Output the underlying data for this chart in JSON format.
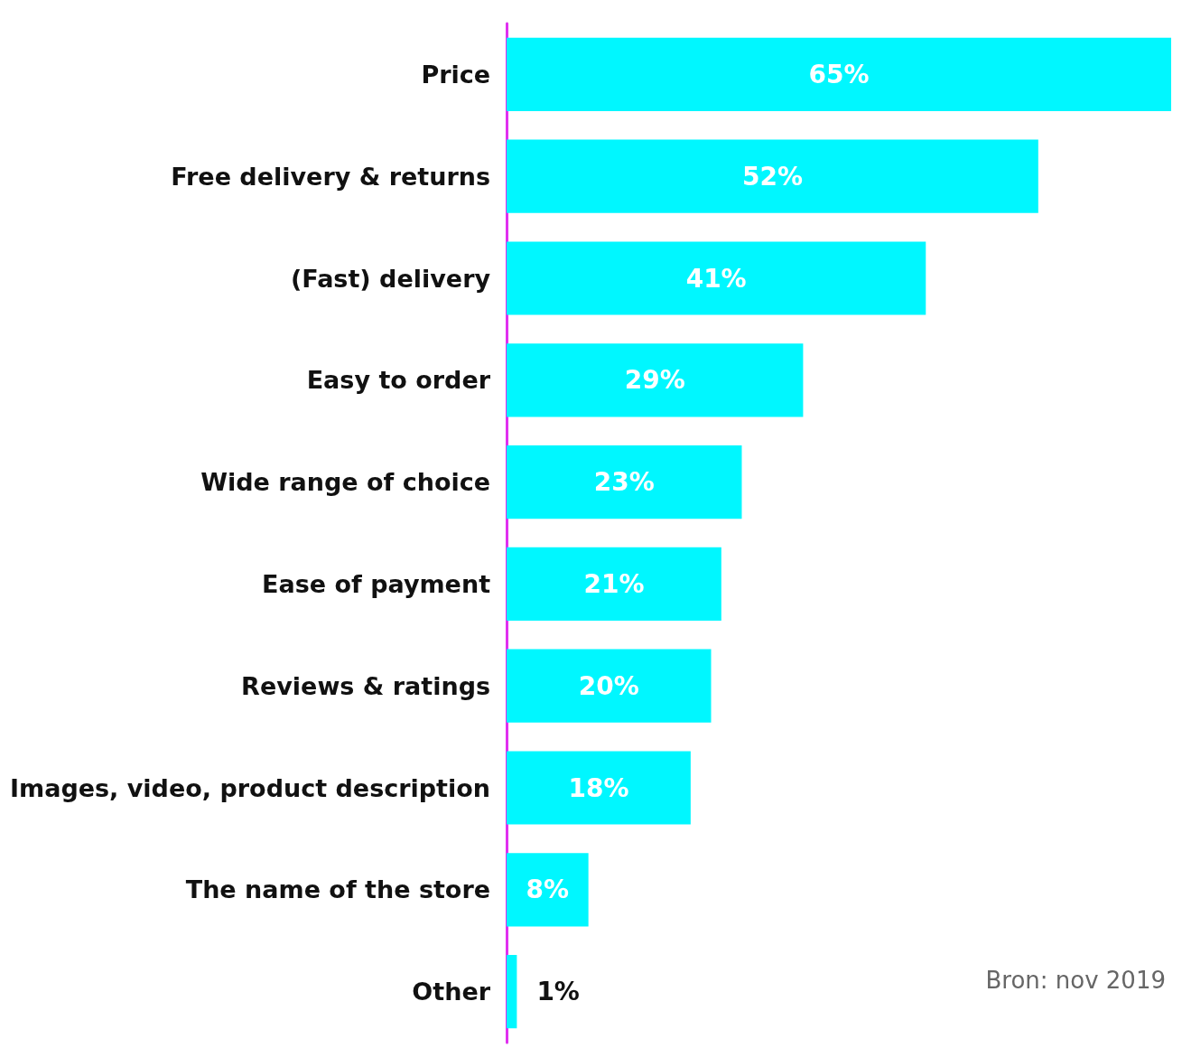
{
  "chart_data": {
    "type": "bar",
    "orientation": "horizontal",
    "categories": [
      "Price",
      "Free delivery & returns",
      "(Fast) delivery",
      "Easy to order",
      "Wide range of choice",
      "Ease of payment",
      "Reviews & ratings",
      "Images, video, product description",
      "The name of the store",
      "Other"
    ],
    "values": [
      65,
      52,
      41,
      29,
      23,
      21,
      20,
      18,
      8,
      1
    ],
    "value_labels": [
      "65%",
      "52%",
      "41%",
      "29%",
      "23%",
      "21%",
      "20%",
      "18%",
      "8%",
      "1%"
    ],
    "color": "#00f7ff",
    "xlim": [
      0,
      65
    ],
    "tick_labels": "y",
    "annotations": [
      "Bron: nov 2019"
    ]
  }
}
